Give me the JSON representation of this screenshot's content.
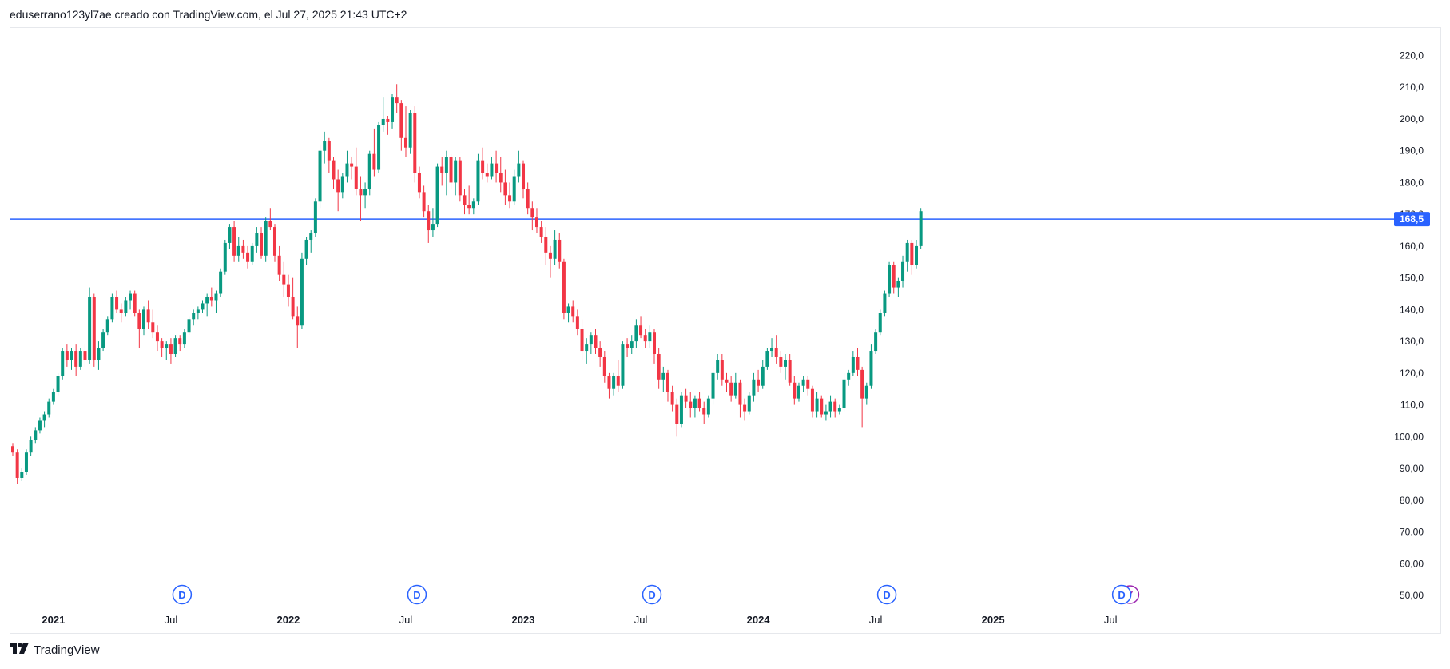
{
  "header": {
    "caption": "eduserrano123yl7ae creado con TradingView.com, el Jul 27, 2025 21:43 UTC+2"
  },
  "brand": {
    "name": "TradingView",
    "logo_icon": "tradingview-logo-icon"
  },
  "colors": {
    "up": "#089981",
    "down": "#f23645",
    "hline": "#2962ff",
    "marker": "#2962ff",
    "split": "#9c27b0"
  },
  "chart_data": {
    "type": "candlestick",
    "ylim": [
      45,
      228
    ],
    "y_ticks": [
      "220,0",
      "210,0",
      "200,0",
      "190,0",
      "180,0",
      "170,0",
      "160,0",
      "150,0",
      "140,0",
      "130,0",
      "120,0",
      "110,0",
      "100,00",
      "90,00",
      "80,00",
      "70,00",
      "60,00",
      "50,00"
    ],
    "y_tick_values": [
      220,
      210,
      200,
      190,
      180,
      170,
      160,
      150,
      140,
      130,
      120,
      110,
      100,
      90,
      80,
      70,
      60,
      50
    ],
    "x_ticks": [
      {
        "label": "2021",
        "year": true,
        "index": 9
      },
      {
        "label": "Jul",
        "year": false,
        "index": 35
      },
      {
        "label": "2022",
        "year": true,
        "index": 61
      },
      {
        "label": "Jul",
        "year": false,
        "index": 87
      },
      {
        "label": "2023",
        "year": true,
        "index": 113
      },
      {
        "label": "Jul",
        "year": false,
        "index": 139
      },
      {
        "label": "2024",
        "year": true,
        "index": 165
      },
      {
        "label": "Jul",
        "year": false,
        "index": 191
      },
      {
        "label": "2025",
        "year": true,
        "index": 217
      },
      {
        "label": "Jul",
        "year": false,
        "index": 243
      }
    ],
    "horizontal_line": {
      "value": 168.5,
      "label": "168,5"
    },
    "dividend_markers": [
      {
        "label": "D",
        "index": 38
      },
      {
        "label": "D",
        "index": 90
      },
      {
        "label": "D",
        "index": 142
      },
      {
        "label": "D",
        "index": 194
      },
      {
        "label": "D",
        "index": 246
      }
    ],
    "split_markers": [
      {
        "index": 248
      }
    ],
    "candles": [
      [
        97,
        98,
        94,
        95
      ],
      [
        95,
        96,
        85,
        87
      ],
      [
        87,
        90,
        86,
        89
      ],
      [
        89,
        96,
        88,
        95
      ],
      [
        95,
        100,
        94,
        99
      ],
      [
        99,
        103,
        98,
        102
      ],
      [
        102,
        106,
        101,
        105
      ],
      [
        105,
        108,
        103,
        107
      ],
      [
        107,
        112,
        106,
        111
      ],
      [
        111,
        115,
        110,
        114
      ],
      [
        114,
        120,
        113,
        119
      ],
      [
        119,
        128,
        118,
        127
      ],
      [
        127,
        129,
        122,
        124
      ],
      [
        124,
        128,
        121,
        127
      ],
      [
        127,
        129,
        119,
        122
      ],
      [
        122,
        128,
        121,
        127
      ],
      [
        127,
        129,
        122,
        124
      ],
      [
        124,
        147,
        123,
        144
      ],
      [
        144,
        145,
        122,
        124
      ],
      [
        124,
        130,
        121,
        128
      ],
      [
        128,
        134,
        127,
        133
      ],
      [
        133,
        138,
        132,
        137
      ],
      [
        137,
        145,
        136,
        144
      ],
      [
        144,
        146,
        139,
        140
      ],
      [
        140,
        142,
        136,
        139
      ],
      [
        139,
        144,
        138,
        143
      ],
      [
        143,
        146,
        140,
        145
      ],
      [
        145,
        146,
        138,
        139
      ],
      [
        139,
        140,
        128,
        134
      ],
      [
        134,
        141,
        132,
        140
      ],
      [
        140,
        143,
        134,
        136
      ],
      [
        136,
        140,
        131,
        133
      ],
      [
        133,
        135,
        127,
        130
      ],
      [
        130,
        131,
        125,
        128
      ],
      [
        128,
        130,
        124,
        129
      ],
      [
        129,
        131,
        123,
        126
      ],
      [
        126,
        132,
        125,
        131
      ],
      [
        131,
        132,
        127,
        129
      ],
      [
        129,
        134,
        128,
        133
      ],
      [
        133,
        138,
        132,
        137
      ],
      [
        137,
        140,
        135,
        139
      ],
      [
        139,
        141,
        137,
        140
      ],
      [
        140,
        143,
        139,
        142
      ],
      [
        142,
        145,
        138,
        144
      ],
      [
        144,
        147,
        141,
        143
      ],
      [
        143,
        146,
        139,
        145
      ],
      [
        145,
        153,
        144,
        152
      ],
      [
        152,
        162,
        151,
        161
      ],
      [
        161,
        167,
        159,
        166
      ],
      [
        166,
        168,
        155,
        157
      ],
      [
        157,
        163,
        155,
        160
      ],
      [
        160,
        162,
        156,
        158
      ],
      [
        158,
        160,
        153,
        155
      ],
      [
        155,
        161,
        154,
        160
      ],
      [
        160,
        166,
        158,
        164
      ],
      [
        164,
        166,
        156,
        157
      ],
      [
        157,
        169,
        155,
        168
      ],
      [
        168,
        172,
        165,
        166
      ],
      [
        166,
        167,
        155,
        157
      ],
      [
        157,
        160,
        149,
        151
      ],
      [
        151,
        155,
        144,
        148
      ],
      [
        148,
        151,
        141,
        144
      ],
      [
        144,
        150,
        137,
        138
      ],
      [
        138,
        141,
        128,
        135
      ],
      [
        135,
        158,
        134,
        156
      ],
      [
        156,
        163,
        154,
        162
      ],
      [
        162,
        165,
        158,
        164
      ],
      [
        164,
        175,
        163,
        174
      ],
      [
        174,
        192,
        172,
        190
      ],
      [
        190,
        196,
        186,
        193
      ],
      [
        193,
        194,
        183,
        187
      ],
      [
        187,
        188,
        178,
        181
      ],
      [
        181,
        184,
        171,
        177
      ],
      [
        177,
        183,
        175,
        182
      ],
      [
        182,
        190,
        180,
        186
      ],
      [
        186,
        188,
        181,
        185
      ],
      [
        185,
        191,
        176,
        178
      ],
      [
        178,
        182,
        168,
        176
      ],
      [
        176,
        180,
        172,
        178
      ],
      [
        178,
        190,
        176,
        189
      ],
      [
        189,
        197,
        182,
        184
      ],
      [
        184,
        199,
        183,
        198
      ],
      [
        198,
        207,
        196,
        200
      ],
      [
        200,
        201,
        195,
        199
      ],
      [
        199,
        208,
        197,
        207
      ],
      [
        207,
        211,
        202,
        205
      ],
      [
        205,
        206,
        190,
        194
      ],
      [
        194,
        204,
        188,
        191
      ],
      [
        191,
        203,
        189,
        202
      ],
      [
        202,
        204,
        180,
        183
      ],
      [
        183,
        185,
        175,
        177
      ],
      [
        177,
        179,
        169,
        171
      ],
      [
        171,
        173,
        161,
        165
      ],
      [
        165,
        172,
        163,
        167
      ],
      [
        167,
        186,
        166,
        185
      ],
      [
        185,
        188,
        179,
        183
      ],
      [
        183,
        190,
        176,
        188
      ],
      [
        188,
        189,
        178,
        180
      ],
      [
        180,
        188,
        176,
        187
      ],
      [
        187,
        188,
        174,
        176
      ],
      [
        176,
        178,
        170,
        173
      ],
      [
        173,
        179,
        170,
        172
      ],
      [
        172,
        175,
        170,
        174
      ],
      [
        174,
        189,
        173,
        187
      ],
      [
        187,
        191,
        181,
        183
      ],
      [
        183,
        186,
        180,
        182
      ],
      [
        182,
        188,
        181,
        186
      ],
      [
        186,
        190,
        180,
        183
      ],
      [
        183,
        188,
        177,
        180
      ],
      [
        180,
        184,
        173,
        176
      ],
      [
        176,
        180,
        172,
        174
      ],
      [
        174,
        184,
        173,
        182
      ],
      [
        182,
        190,
        180,
        186
      ],
      [
        186,
        187,
        175,
        178
      ],
      [
        178,
        180,
        170,
        172
      ],
      [
        172,
        174,
        165,
        169
      ],
      [
        169,
        172,
        164,
        166
      ],
      [
        166,
        168,
        161,
        163
      ],
      [
        163,
        166,
        154,
        158
      ],
      [
        158,
        160,
        150,
        156
      ],
      [
        156,
        165,
        154,
        162
      ],
      [
        162,
        164,
        153,
        155
      ],
      [
        155,
        156,
        137,
        139
      ],
      [
        139,
        142,
        136,
        141
      ],
      [
        141,
        143,
        136,
        138
      ],
      [
        138,
        140,
        132,
        134
      ],
      [
        134,
        137,
        124,
        127
      ],
      [
        127,
        131,
        123,
        129
      ],
      [
        129,
        133,
        126,
        132
      ],
      [
        132,
        134,
        126,
        128
      ],
      [
        128,
        130,
        122,
        125
      ],
      [
        125,
        127,
        117,
        119
      ],
      [
        119,
        120,
        112,
        115
      ],
      [
        115,
        120,
        113,
        119
      ],
      [
        119,
        124,
        114,
        116
      ],
      [
        116,
        130,
        115,
        129
      ],
      [
        129,
        131,
        125,
        128
      ],
      [
        128,
        132,
        126,
        130
      ],
      [
        130,
        137,
        128,
        135
      ],
      [
        135,
        138,
        131,
        132
      ],
      [
        132,
        134,
        128,
        130
      ],
      [
        130,
        135,
        128,
        133
      ],
      [
        133,
        134,
        123,
        126
      ],
      [
        126,
        128,
        115,
        118
      ],
      [
        118,
        122,
        114,
        120
      ],
      [
        120,
        121,
        111,
        114
      ],
      [
        114,
        116,
        108,
        110
      ],
      [
        110,
        112,
        100,
        104
      ],
      [
        104,
        114,
        103,
        113
      ],
      [
        113,
        115,
        109,
        111
      ],
      [
        111,
        114,
        106,
        109
      ],
      [
        109,
        113,
        106,
        112
      ],
      [
        112,
        114,
        108,
        109
      ],
      [
        109,
        111,
        104,
        107
      ],
      [
        107,
        113,
        106,
        112
      ],
      [
        112,
        122,
        110,
        120
      ],
      [
        120,
        126,
        118,
        124
      ],
      [
        124,
        126,
        116,
        118
      ],
      [
        118,
        120,
        114,
        117
      ],
      [
        117,
        119,
        111,
        113
      ],
      [
        113,
        120,
        112,
        117
      ],
      [
        117,
        118,
        106,
        110
      ],
      [
        110,
        112,
        105,
        108
      ],
      [
        108,
        114,
        107,
        113
      ],
      [
        113,
        120,
        111,
        118
      ],
      [
        118,
        121,
        114,
        116
      ],
      [
        116,
        124,
        115,
        122
      ],
      [
        122,
        128,
        121,
        127
      ],
      [
        127,
        131,
        125,
        128
      ],
      [
        128,
        132,
        123,
        125
      ],
      [
        125,
        127,
        120,
        122
      ],
      [
        122,
        126,
        118,
        124
      ],
      [
        124,
        126,
        116,
        117
      ],
      [
        117,
        119,
        110,
        112
      ],
      [
        112,
        117,
        111,
        116
      ],
      [
        116,
        119,
        114,
        118
      ],
      [
        118,
        119,
        113,
        115
      ],
      [
        115,
        116,
        106,
        108
      ],
      [
        108,
        114,
        106,
        112
      ],
      [
        112,
        113,
        106,
        107
      ],
      [
        107,
        110,
        105,
        108
      ],
      [
        108,
        113,
        106,
        111
      ],
      [
        111,
        112,
        106,
        108
      ],
      [
        108,
        110,
        107,
        109
      ],
      [
        109,
        120,
        108,
        118
      ],
      [
        118,
        121,
        116,
        120
      ],
      [
        120,
        127,
        119,
        125
      ],
      [
        125,
        128,
        119,
        121
      ],
      [
        121,
        122,
        103,
        112
      ],
      [
        112,
        117,
        110,
        116
      ],
      [
        116,
        129,
        115,
        127
      ],
      [
        127,
        134,
        126,
        133
      ],
      [
        133,
        140,
        132,
        139
      ],
      [
        139,
        146,
        138,
        145
      ],
      [
        145,
        155,
        144,
        154
      ],
      [
        154,
        155,
        145,
        147
      ],
      [
        147,
        150,
        144,
        149
      ],
      [
        149,
        157,
        147,
        155
      ],
      [
        155,
        162,
        152,
        161
      ],
      [
        161,
        162,
        151,
        154
      ],
      [
        154,
        162,
        153,
        160
      ],
      [
        160,
        172,
        159,
        171
      ]
    ]
  }
}
